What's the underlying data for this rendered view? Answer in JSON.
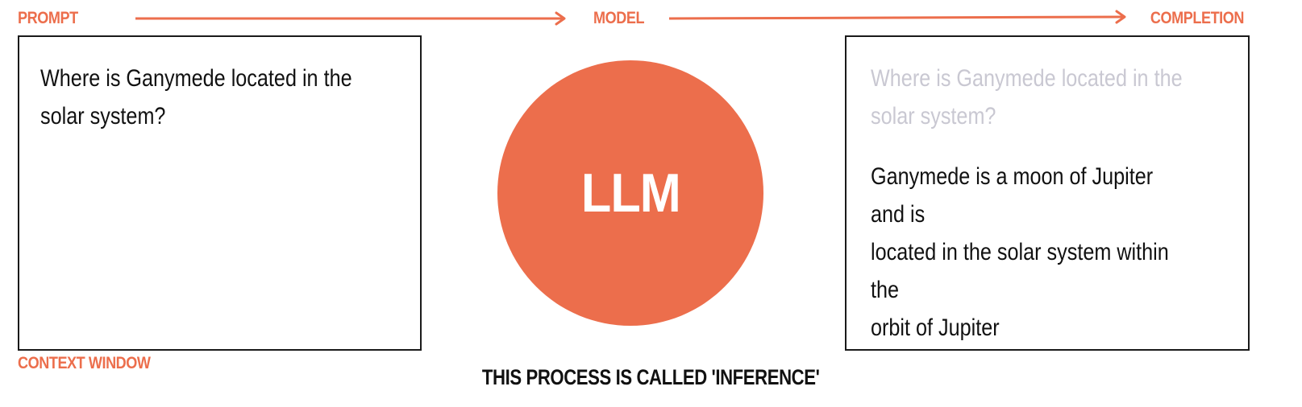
{
  "labels": {
    "prompt": "PROMPT",
    "model": "MODEL",
    "completion": "COMPLETION",
    "context_window": "CONTEXT WINDOW"
  },
  "prompt_box": {
    "line1": "Where is Ganymede located in the",
    "line2": "solar system?"
  },
  "model": {
    "name": "LLM"
  },
  "completion_box": {
    "prompt_line1": "Where is Ganymede located in the",
    "prompt_line2": "solar system?",
    "answer_line1": "Ganymede is a moon of Jupiter and is",
    "answer_line2": "located in the solar system within the",
    "answer_line3": "orbit of Jupiter"
  },
  "footer": "THIS PROCESS IS CALLED 'INFERENCE'",
  "colors": {
    "accent": "#ec6e4c",
    "text": "#111111",
    "faded_text": "#c9c8d2",
    "border": "#1a1a1a"
  }
}
